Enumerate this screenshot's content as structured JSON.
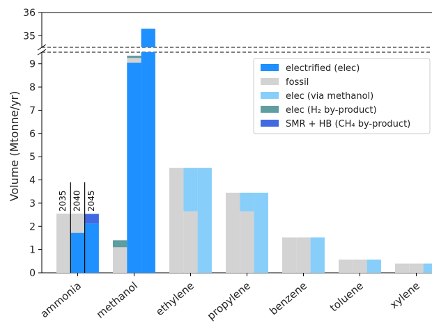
{
  "chart_data": {
    "type": "bar",
    "ylabel": "Volume (Mtonne/yr)",
    "y_axis_break": {
      "lower_range": [
        0,
        9.5
      ],
      "upper_range": [
        34.5,
        36
      ]
    },
    "y_ticks_lower": [
      0,
      1,
      2,
      3,
      4,
      5,
      6,
      7,
      8,
      9
    ],
    "y_ticks_upper": [
      35,
      36
    ],
    "legend_position": "top-right",
    "colors": {
      "electrified": "#1e90ff",
      "fossil": "#d3d3d3",
      "elec_via_methanol": "#87cefa",
      "elec_h2_byproduct": "#5f9ea0",
      "smr_hb": "#4169e1"
    },
    "legend": [
      {
        "key": "electrified",
        "label": "electrified (elec)"
      },
      {
        "key": "fossil",
        "label": "fossil"
      },
      {
        "key": "elec_via_methanol",
        "label": "elec (via methanol)"
      },
      {
        "key": "elec_h2_byproduct",
        "label": "elec (H₂ by-product)"
      },
      {
        "key": "smr_hb",
        "label": "SMR + HB (CH₄ by-product)"
      }
    ],
    "year_labels": [
      "2035",
      "2040",
      "2045"
    ],
    "categories": [
      "ammonia",
      "methanol",
      "ethylene",
      "propylene",
      "benzene",
      "toluene",
      "xylene"
    ],
    "bars": [
      {
        "category": "ammonia",
        "sub": "2035",
        "segments": [
          {
            "key": "fossil",
            "value": 2.55
          }
        ]
      },
      {
        "category": "ammonia",
        "sub": "2040",
        "segments": [
          {
            "key": "electrified",
            "value": 1.72
          },
          {
            "key": "fossil",
            "value": 0.83
          }
        ]
      },
      {
        "category": "ammonia",
        "sub": "2045",
        "segments": [
          {
            "key": "electrified",
            "value": 2.12
          },
          {
            "key": "smr_hb",
            "value": 0.42
          }
        ]
      },
      {
        "category": "methanol",
        "sub": "2035",
        "segments": [
          {
            "key": "fossil",
            "value": 1.1
          },
          {
            "key": "elec_h2_byproduct",
            "value": 0.3
          }
        ]
      },
      {
        "category": "methanol",
        "sub": "2040",
        "segments": [
          {
            "key": "electrified",
            "value": 9.05
          },
          {
            "key": "fossil",
            "value": 0.2
          },
          {
            "key": "elec_h2_byproduct",
            "value": 0.1
          }
        ]
      },
      {
        "category": "methanol",
        "sub": "2045",
        "segments": [
          {
            "key": "electrified",
            "value": 35.3
          }
        ]
      },
      {
        "category": "ethylene",
        "sub": "2035",
        "segments": [
          {
            "key": "fossil",
            "value": 4.52
          }
        ]
      },
      {
        "category": "ethylene",
        "sub": "2040",
        "segments": [
          {
            "key": "fossil",
            "value": 2.65
          },
          {
            "key": "elec_via_methanol",
            "value": 1.87
          }
        ]
      },
      {
        "category": "ethylene",
        "sub": "2045",
        "segments": [
          {
            "key": "elec_via_methanol",
            "value": 4.52
          }
        ]
      },
      {
        "category": "propylene",
        "sub": "2035",
        "segments": [
          {
            "key": "fossil",
            "value": 3.45
          }
        ]
      },
      {
        "category": "propylene",
        "sub": "2040",
        "segments": [
          {
            "key": "fossil",
            "value": 2.65
          },
          {
            "key": "elec_via_methanol",
            "value": 0.8
          }
        ]
      },
      {
        "category": "propylene",
        "sub": "2045",
        "segments": [
          {
            "key": "elec_via_methanol",
            "value": 3.45
          }
        ]
      },
      {
        "category": "benzene",
        "sub": "2035",
        "segments": [
          {
            "key": "fossil",
            "value": 1.52
          }
        ]
      },
      {
        "category": "benzene",
        "sub": "2040",
        "segments": [
          {
            "key": "fossil",
            "value": 1.52
          }
        ]
      },
      {
        "category": "benzene",
        "sub": "2045",
        "segments": [
          {
            "key": "elec_via_methanol",
            "value": 1.52
          }
        ]
      },
      {
        "category": "toluene",
        "sub": "2035",
        "segments": [
          {
            "key": "fossil",
            "value": 0.57
          }
        ]
      },
      {
        "category": "toluene",
        "sub": "2040",
        "segments": [
          {
            "key": "fossil",
            "value": 0.57
          }
        ]
      },
      {
        "category": "toluene",
        "sub": "2045",
        "segments": [
          {
            "key": "elec_via_methanol",
            "value": 0.57
          }
        ]
      },
      {
        "category": "xylene",
        "sub": "2035",
        "segments": [
          {
            "key": "fossil",
            "value": 0.4
          }
        ]
      },
      {
        "category": "xylene",
        "sub": "2040",
        "segments": [
          {
            "key": "fossil",
            "value": 0.4
          }
        ]
      },
      {
        "category": "xylene",
        "sub": "2045",
        "segments": [
          {
            "key": "elec_via_methanol",
            "value": 0.4
          }
        ]
      }
    ]
  }
}
